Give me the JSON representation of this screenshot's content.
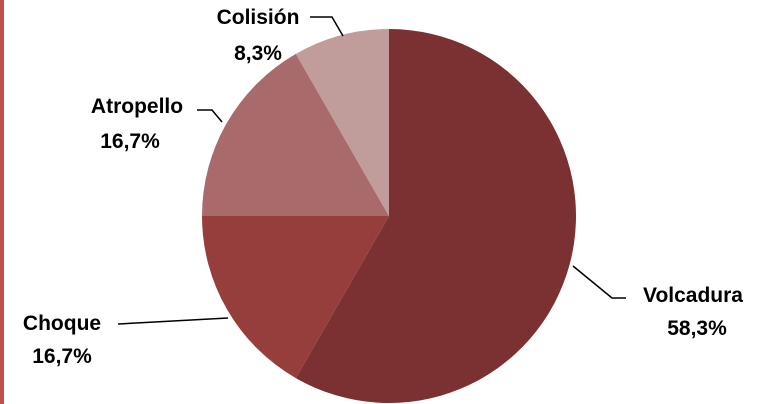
{
  "chart_data": {
    "type": "pie",
    "labels": [
      "Volcadura",
      "Choque",
      "Atropello",
      "Colisión"
    ],
    "values": [
      58.3,
      16.7,
      16.7,
      8.3
    ],
    "value_labels": [
      "58,3%",
      "16,7%",
      "16,7%",
      "8,3%"
    ],
    "colors": [
      "#7b3131",
      "#953e3b",
      "#a86a6a",
      "#c09c9a"
    ],
    "start_angle_deg": 0,
    "direction": "clockwise",
    "title": ""
  },
  "colors": {
    "left_rule": "#c0504d"
  }
}
